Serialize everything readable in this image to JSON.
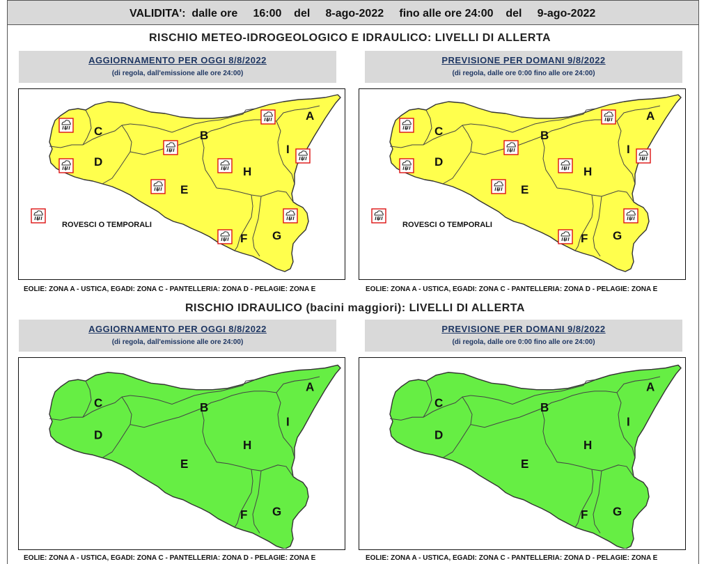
{
  "validity": {
    "label": "VALIDITA':",
    "from_text": "dalle ore",
    "from_time": "16:00",
    "del1": "del",
    "from_date": "8-ago-2022",
    "to_text": "fino alle ore 24:00",
    "del2": "del",
    "to_date": "9-ago-2022"
  },
  "meteo": {
    "title": "RISCHIO METEO-IDROGEOLOGICO E IDRAULICO: LIVELLI DI ALLERTA",
    "fill_color": "#ffff4d",
    "left_panel": {
      "heading": "AGGIORNAMENTO PER OGGI 8/8/2022",
      "subheading": "(di regola, dall'emissione alle ore 24:00)"
    },
    "right_panel": {
      "heading": "PREVISIONE PER DOMANI 9/8/2022",
      "subheading": "(di regola, dalle ore 0:00 fino alle ore 24:00)"
    },
    "legend": "ROVESCI O TEMPORALI",
    "legend_icon": "storm-icon"
  },
  "idraulico": {
    "title": "RISCHIO IDRAULICO (bacini maggiori): LIVELLI DI ALLERTA",
    "fill_color": "#66ee44",
    "left_panel": {
      "heading": "AGGIORNAMENTO PER OGGI 8/8/2022",
      "subheading": "(di regola, dall'emissione alle ore 24:00)"
    },
    "right_panel": {
      "heading": "PREVISIONE PER DOMANI 9/8/2022",
      "subheading": "(di regola, dalle ore 0:00 fino alle ore 24:00)"
    }
  },
  "zones": {
    "A": "A",
    "B": "B",
    "C": "C",
    "D": "D",
    "E": "E",
    "F": "F",
    "G": "G",
    "H": "H",
    "I": "I"
  },
  "footer": "EOLIE: ZONA A - USTICA, EGADI: ZONA C - PANTELLERIA: ZONA D - PELAGIE: ZONA E"
}
